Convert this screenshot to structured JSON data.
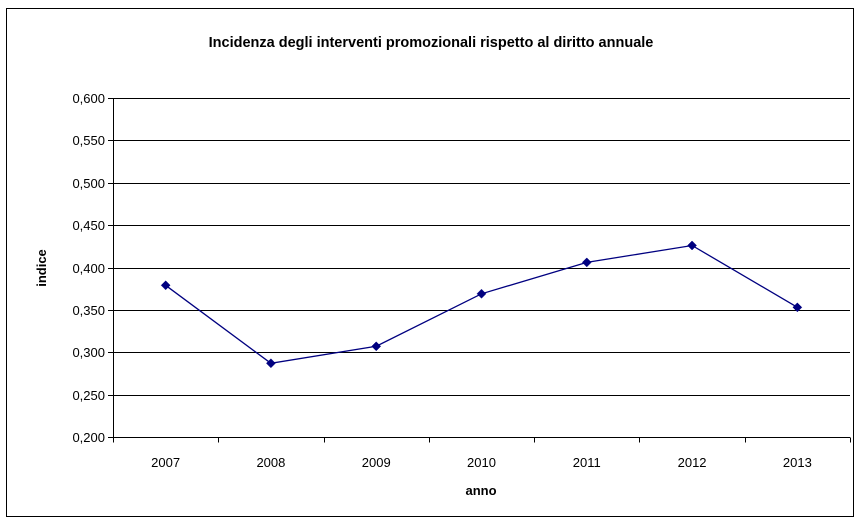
{
  "chart_data": {
    "type": "line",
    "title": "Incidenza degli interventi promozionali rispetto al diritto annuale",
    "xlabel": "anno",
    "ylabel": "indice",
    "categories": [
      "2007",
      "2008",
      "2009",
      "2010",
      "2011",
      "2012",
      "2013"
    ],
    "series": [
      {
        "values": [
          0.379,
          0.287,
          0.307,
          0.369,
          0.406,
          0.426,
          0.353
        ]
      }
    ],
    "ylim": [
      0.2,
      0.6
    ],
    "yticks": [
      0.2,
      0.25,
      0.3,
      0.35,
      0.4,
      0.45,
      0.5,
      0.55,
      0.6
    ],
    "ytick_labels": [
      "0,200",
      "0,250",
      "0,300",
      "0,350",
      "0,400",
      "0,450",
      "0,500",
      "0,550",
      "0,600"
    ],
    "grid": "horizontal",
    "legend": "none",
    "colors": {
      "series": "#000080",
      "grid": "#000000",
      "background": "#ffffff"
    }
  }
}
